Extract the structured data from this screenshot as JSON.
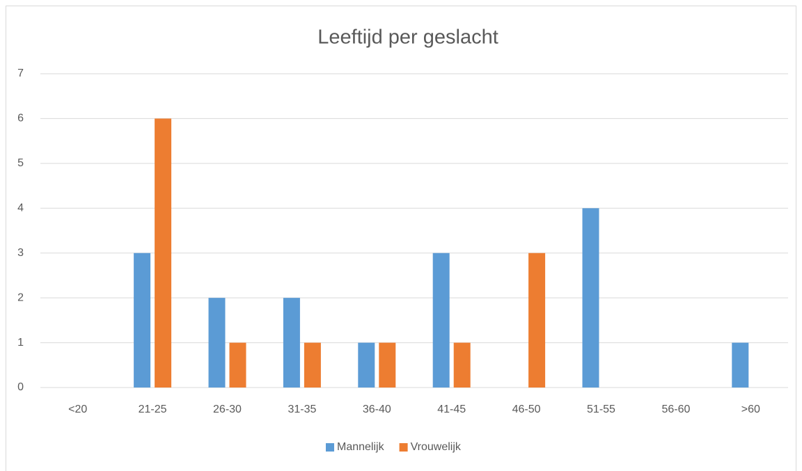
{
  "chart_data": {
    "type": "bar",
    "title": "Leeftijd per geslacht",
    "categories": [
      "<20",
      "21-25",
      "26-30",
      "31-35",
      "36-40",
      "41-45",
      "46-50",
      "51-55",
      "56-60",
      ">60"
    ],
    "series": [
      {
        "name": "Mannelijk",
        "color": "#5b9bd5",
        "values": [
          0,
          3,
          2,
          2,
          1,
          3,
          0,
          4,
          0,
          1
        ]
      },
      {
        "name": "Vrouwelijk",
        "color": "#ed7d31",
        "values": [
          0,
          6,
          1,
          1,
          1,
          1,
          3,
          0,
          0,
          0
        ]
      }
    ],
    "ylim": [
      0,
      7
    ],
    "yticks": [
      0,
      1,
      2,
      3,
      4,
      5,
      6,
      7
    ],
    "grid": true,
    "legend": "bottom"
  }
}
